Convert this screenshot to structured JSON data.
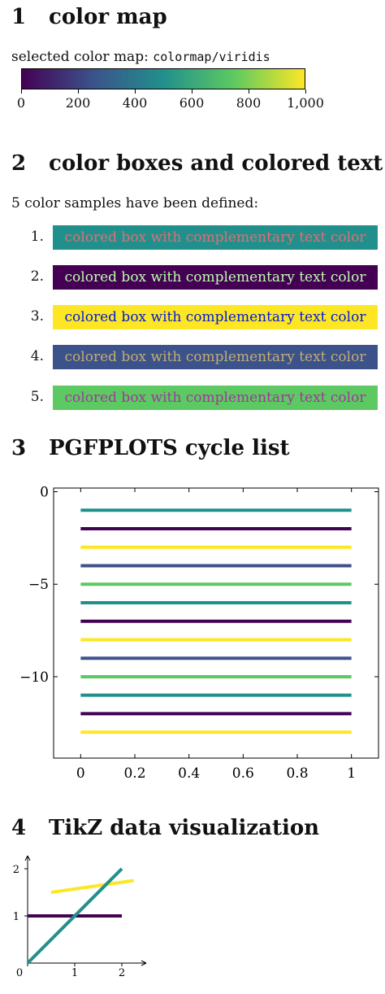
{
  "section1": {
    "number": "1",
    "title": "color map"
  },
  "colormap": {
    "label_prefix": "selected color map:",
    "name": "colormap/viridis",
    "ticks": [
      "0",
      "200",
      "400",
      "600",
      "800",
      "1,000"
    ],
    "gradient": [
      "#440154",
      "#3b528b",
      "#21908c",
      "#5dc962",
      "#fde725"
    ]
  },
  "section2": {
    "number": "2",
    "title": "color boxes and colored text"
  },
  "samples_intro": "5 color samples have been defined:",
  "samples": [
    {
      "num": "1.",
      "text": "colored box with complementary text color",
      "bg": "#21908c",
      "fg": "#de6f73"
    },
    {
      "num": "2.",
      "text": "colored box with complementary text color",
      "bg": "#440154",
      "fg": "#bbfeab"
    },
    {
      "num": "3.",
      "text": "colored box with complementary text color",
      "bg": "#fde725",
      "fg": "#0218da"
    },
    {
      "num": "4.",
      "text": "colored box with complementary text color",
      "bg": "#3b528b",
      "fg": "#c4ad74"
    },
    {
      "num": "5.",
      "text": "colored box with complementary text color",
      "bg": "#5dc962",
      "fg": "#a2369d"
    }
  ],
  "section3": {
    "number": "3",
    "title": "PGFPLOTS cycle list"
  },
  "section4": {
    "number": "4",
    "title": "TikZ data visualization"
  },
  "chart_data": [
    {
      "type": "line",
      "title": "",
      "xlabel": "",
      "ylabel": "",
      "xlim": [
        -0.1,
        1.1
      ],
      "ylim": [
        -14.4,
        0.2
      ],
      "xticks": [
        "0",
        "0.2",
        "0.4",
        "0.6",
        "0.8",
        "1"
      ],
      "xtick_values": [
        0,
        0.2,
        0.4,
        0.6,
        0.8,
        1
      ],
      "yticks": [
        "0",
        "−5",
        "−10"
      ],
      "ytick_values": [
        0,
        -5,
        -10
      ],
      "grid": false,
      "series": [
        {
          "x": [
            0,
            1
          ],
          "y": [
            -1,
            -1
          ],
          "color": "#21908c"
        },
        {
          "x": [
            0,
            1
          ],
          "y": [
            -2,
            -2
          ],
          "color": "#440154"
        },
        {
          "x": [
            0,
            1
          ],
          "y": [
            -3,
            -3
          ],
          "color": "#fde725"
        },
        {
          "x": [
            0,
            1
          ],
          "y": [
            -4,
            -4
          ],
          "color": "#3b528b"
        },
        {
          "x": [
            0,
            1
          ],
          "y": [
            -5,
            -5
          ],
          "color": "#5dc962"
        },
        {
          "x": [
            0,
            1
          ],
          "y": [
            -6,
            -6
          ],
          "color": "#21908c"
        },
        {
          "x": [
            0,
            1
          ],
          "y": [
            -7,
            -7
          ],
          "color": "#440154"
        },
        {
          "x": [
            0,
            1
          ],
          "y": [
            -8,
            -8
          ],
          "color": "#fde725"
        },
        {
          "x": [
            0,
            1
          ],
          "y": [
            -9,
            -9
          ],
          "color": "#3b528b"
        },
        {
          "x": [
            0,
            1
          ],
          "y": [
            -10,
            -10
          ],
          "color": "#5dc962"
        },
        {
          "x": [
            0,
            1
          ],
          "y": [
            -11,
            -11
          ],
          "color": "#21908c"
        },
        {
          "x": [
            0,
            1
          ],
          "y": [
            -12,
            -12
          ],
          "color": "#440154"
        },
        {
          "x": [
            0,
            1
          ],
          "y": [
            -13,
            -13
          ],
          "color": "#fde725"
        }
      ]
    },
    {
      "type": "line",
      "title": "",
      "xlabel": "",
      "ylabel": "",
      "xlim": [
        0,
        2.5
      ],
      "ylim": [
        0,
        2.3
      ],
      "xticks": [
        "0",
        "1",
        "2"
      ],
      "xtick_values": [
        0,
        1,
        2
      ],
      "yticks": [
        "1",
        "2"
      ],
      "ytick_values": [
        1,
        2
      ],
      "series": [
        {
          "x": [
            0,
            2
          ],
          "y": [
            1,
            1
          ],
          "color": "#440154"
        },
        {
          "x": [
            0.5,
            2.25
          ],
          "y": [
            1.5,
            1.75
          ],
          "color": "#fde725"
        },
        {
          "x": [
            0,
            2
          ],
          "y": [
            0,
            2
          ],
          "color": "#21908c"
        }
      ]
    }
  ]
}
